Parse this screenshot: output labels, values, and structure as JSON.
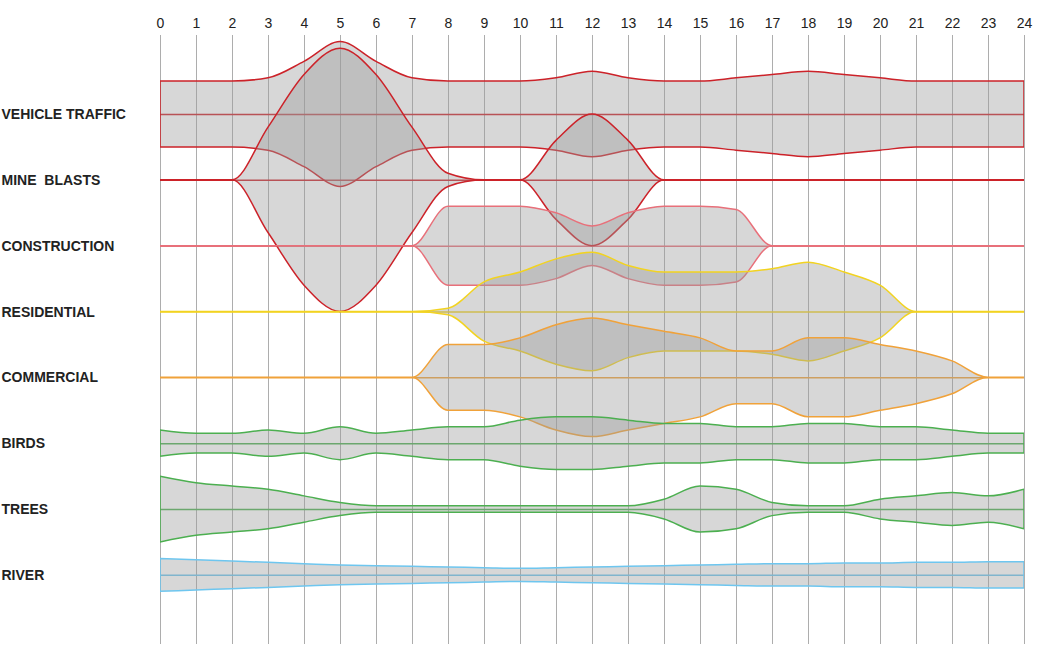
{
  "chart_data": {
    "type": "area",
    "x": [
      0,
      1,
      2,
      3,
      4,
      5,
      6,
      7,
      8,
      9,
      10,
      11,
      12,
      13,
      14,
      15,
      16,
      17,
      18,
      19,
      20,
      21,
      22,
      23,
      24
    ],
    "xlim": [
      0,
      24
    ],
    "xticks": [
      0,
      1,
      2,
      3,
      4,
      5,
      6,
      7,
      8,
      9,
      10,
      11,
      12,
      13,
      14,
      15,
      16,
      17,
      18,
      19,
      20,
      21,
      22,
      23,
      24
    ],
    "grid": true,
    "series": [
      {
        "name": "VEHICLE TRAFFIC",
        "color": "#cc2229",
        "values": [
          0.5,
          0.5,
          0.5,
          0.55,
          0.8,
          1.1,
          0.8,
          0.55,
          0.5,
          0.5,
          0.5,
          0.55,
          0.65,
          0.55,
          0.5,
          0.5,
          0.55,
          0.6,
          0.65,
          0.6,
          0.55,
          0.5,
          0.5,
          0.5,
          0.5
        ]
      },
      {
        "name": "MINE  BLASTS",
        "color": "#cc2229",
        "values": [
          0,
          0,
          0,
          0.8,
          1.6,
          2.0,
          1.6,
          0.8,
          0.1,
          0,
          0,
          0.6,
          1.0,
          0.6,
          0,
          0,
          0,
          0,
          0,
          0,
          0,
          0,
          0,
          0,
          0
        ]
      },
      {
        "name": "CONSTRUCTION",
        "color": "#e8707a",
        "values": [
          0,
          0,
          0,
          0,
          0,
          0,
          0,
          0,
          0.6,
          0.6,
          0.6,
          0.5,
          0.3,
          0.5,
          0.6,
          0.6,
          0.55,
          0,
          0,
          0,
          0,
          0,
          0,
          0,
          0
        ]
      },
      {
        "name": "RESIDENTIAL",
        "color": "#f2d321",
        "values": [
          0,
          0,
          0,
          0,
          0,
          0,
          0,
          0,
          0.05,
          0.45,
          0.6,
          0.8,
          0.9,
          0.7,
          0.6,
          0.6,
          0.6,
          0.65,
          0.75,
          0.6,
          0.4,
          0,
          0,
          0,
          0
        ]
      },
      {
        "name": "COMMERCIAL",
        "color": "#f0a23a",
        "values": [
          0,
          0,
          0,
          0,
          0,
          0,
          0,
          0,
          0.5,
          0.5,
          0.6,
          0.8,
          0.9,
          0.8,
          0.7,
          0.6,
          0.4,
          0.4,
          0.6,
          0.6,
          0.5,
          0.4,
          0.25,
          0,
          0
        ]
      },
      {
        "name": "BIRDS",
        "color": "#4caf50",
        "values": [
          0.2,
          0.15,
          0.15,
          0.2,
          0.15,
          0.25,
          0.15,
          0.2,
          0.25,
          0.25,
          0.35,
          0.4,
          0.4,
          0.35,
          0.3,
          0.3,
          0.25,
          0.25,
          0.3,
          0.3,
          0.25,
          0.25,
          0.2,
          0.15,
          0.15
        ]
      },
      {
        "name": "TREES",
        "color": "#4caf50",
        "values": [
          0.5,
          0.4,
          0.35,
          0.3,
          0.2,
          0.1,
          0.05,
          0.05,
          0.05,
          0.05,
          0.05,
          0.05,
          0.05,
          0.05,
          0.15,
          0.35,
          0.3,
          0.1,
          0.05,
          0.05,
          0.15,
          0.2,
          0.25,
          0.2,
          0.3
        ]
      },
      {
        "name": "RIVER",
        "color": "#6ec6ef",
        "values": [
          0.25,
          0.23,
          0.21,
          0.19,
          0.17,
          0.15,
          0.14,
          0.13,
          0.12,
          0.11,
          0.1,
          0.11,
          0.12,
          0.13,
          0.14,
          0.15,
          0.16,
          0.17,
          0.17,
          0.18,
          0.18,
          0.19,
          0.19,
          0.2,
          0.2
        ]
      }
    ]
  }
}
